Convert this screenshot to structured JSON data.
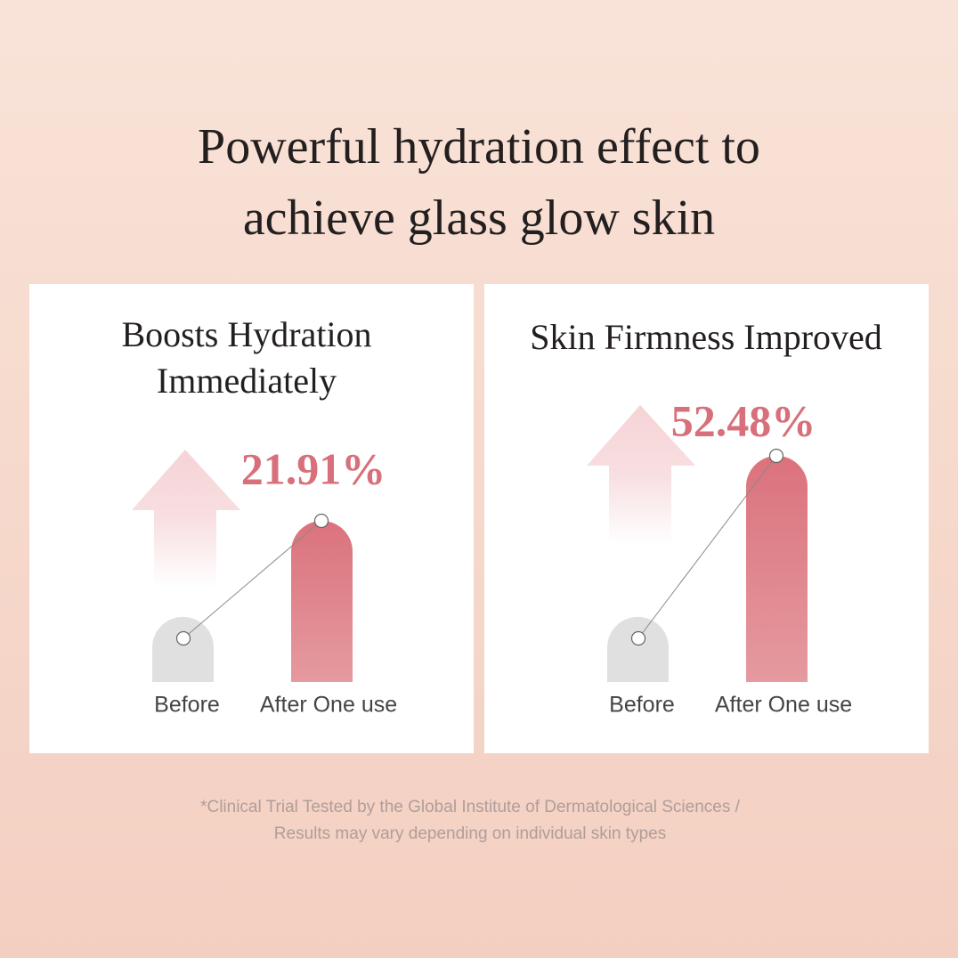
{
  "header": {
    "title_lines": [
      "Powerful hydration effect to",
      "achieve glass glow skin"
    ]
  },
  "panels": [
    {
      "title_lines": [
        "Boosts Hydration",
        "Immediately"
      ],
      "result": "21.91%",
      "categories": [
        "Before",
        "After One use"
      ]
    },
    {
      "title_lines": [
        "Skin Firmness Improved"
      ],
      "result": "52.48%",
      "categories": [
        "Before",
        "After One use"
      ]
    }
  ],
  "footnote": {
    "lines": [
      "*Clinical Trial Tested by the Global Institute of Dermatological Sciences /",
      "Results may vary depending on individual skin types"
    ]
  }
}
